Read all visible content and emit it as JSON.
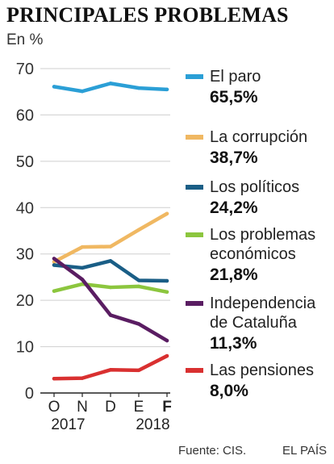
{
  "chart_data": {
    "type": "line",
    "title": "PRINCIPALES PROBLEMAS",
    "unit_label": "En %",
    "ylim": [
      0,
      70
    ],
    "yticks": [
      0,
      10,
      20,
      30,
      40,
      50,
      60,
      70
    ],
    "categories": [
      "O",
      "N",
      "D",
      "E",
      "F"
    ],
    "bold_categories": [
      "F"
    ],
    "years": [
      {
        "label": "2017",
        "under_category": 0.5
      },
      {
        "label": "2018",
        "under_category": 3.5
      }
    ],
    "grid": true,
    "series": [
      {
        "name": "El paro",
        "value_label": "65,5%",
        "color": "#2b9fd6",
        "values": [
          66.1,
          65.1,
          66.8,
          65.8,
          65.5
        ]
      },
      {
        "name": "La corrupción",
        "value_label": "38,7%",
        "color": "#f0b862",
        "values": [
          28.3,
          31.5,
          31.6,
          35.2,
          38.7
        ]
      },
      {
        "name": "Los políticos",
        "value_label": "24,2%",
        "color": "#1a5e86",
        "values": [
          27.6,
          27.0,
          28.5,
          24.3,
          24.2
        ]
      },
      {
        "name": "Los problemas económicos",
        "label_lines": [
          "Los problemas",
          "económicos"
        ],
        "value_label": "21,8%",
        "color": "#8cc63e",
        "values": [
          22.0,
          23.5,
          22.8,
          23.0,
          21.8
        ]
      },
      {
        "name": "Independencia de Cataluña",
        "label_lines": [
          "Independencia",
          "de Cataluña"
        ],
        "value_label": "11,3%",
        "color": "#5a1d62",
        "values": [
          29.0,
          24.5,
          16.8,
          14.9,
          11.3
        ]
      },
      {
        "name": "Las pensiones",
        "value_label": "8,0%",
        "color": "#d93030",
        "values": [
          3.1,
          3.2,
          5.0,
          4.9,
          8.0
        ]
      }
    ]
  },
  "footer": {
    "source": "Fuente: CIS.",
    "publisher": "EL PAÍS"
  }
}
